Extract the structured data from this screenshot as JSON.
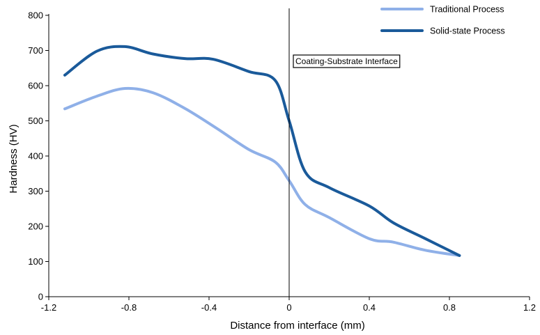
{
  "chart_data": {
    "type": "line",
    "xlabel": "Distance from interface (mm)",
    "ylabel": "Hardness (HV)",
    "xlim": [
      -1.2,
      1.2
    ],
    "ylim": [
      0,
      800
    ],
    "xticks": [
      "-1.2",
      "-0.8",
      "-0.4",
      "0",
      "0.4",
      "0.8",
      "1.2"
    ],
    "xtick_values": [
      -1.2,
      -0.8,
      -0.4,
      0,
      0.4,
      0.8,
      1.2
    ],
    "yticks": [
      "0",
      "100",
      "200",
      "300",
      "400",
      "500",
      "600",
      "700",
      "800"
    ],
    "ytick_values": [
      0,
      100,
      200,
      300,
      400,
      500,
      600,
      700,
      800
    ],
    "grid": false,
    "legend_position": "top-right",
    "annotation": {
      "text": "Coating-Substrate Interface",
      "x": 0
    },
    "series": [
      {
        "name": "Traditional Process",
        "color": "#8fb0e8",
        "x": [
          -1.12,
          -0.96,
          -0.82,
          -0.68,
          -0.52,
          -0.36,
          -0.2,
          -0.07,
          0,
          0.08,
          0.2,
          0.4,
          0.52,
          0.68,
          0.85
        ],
        "y": [
          534,
          570,
          592,
          580,
          535,
          478,
          418,
          383,
          330,
          262,
          225,
          165,
          155,
          132,
          117
        ]
      },
      {
        "name": "Solid-state Process",
        "color": "#1a5a9a",
        "x": [
          -1.12,
          -0.96,
          -0.82,
          -0.68,
          -0.52,
          -0.38,
          -0.2,
          -0.07,
          0,
          0.08,
          0.2,
          0.4,
          0.52,
          0.68,
          0.85
        ],
        "y": [
          630,
          698,
          711,
          690,
          677,
          675,
          640,
          615,
          500,
          355,
          310,
          258,
          210,
          165,
          117
        ]
      }
    ]
  }
}
